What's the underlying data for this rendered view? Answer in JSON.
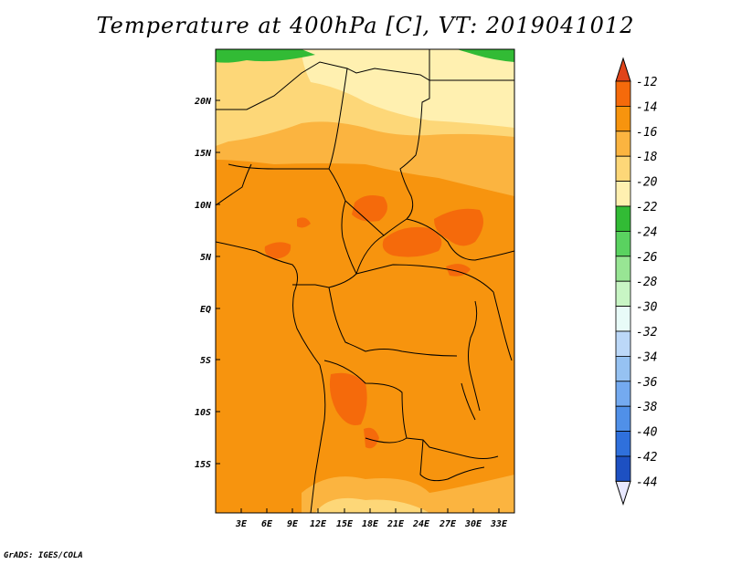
{
  "title": "Temperature at 400hPa [C], VT: 2019041012",
  "credit": "GrADS: IGES/COLA",
  "lat_labels": [
    "20N",
    "15N",
    "10N",
    "5N",
    "EQ",
    "5S",
    "10S",
    "15S"
  ],
  "lon_labels": [
    "3E",
    "6E",
    "9E",
    "12E",
    "15E",
    "18E",
    "21E",
    "24E",
    "27E",
    "30E",
    "33E"
  ],
  "colorbar": {
    "labels": [
      "-12",
      "-14",
      "-16",
      "-18",
      "-20",
      "-22",
      "-24",
      "-26",
      "-28",
      "-30",
      "-32",
      "-34",
      "-36",
      "-38",
      "-40",
      "-42",
      "-44"
    ],
    "colors": [
      "#f04a16",
      "#f56a0b",
      "#f7940e",
      "#fbb440",
      "#fdd778",
      "#fff0b0",
      "#32bb35",
      "#5ad260",
      "#98e594",
      "#c8f5c4",
      "#e8fbf8",
      "#bcd8f8",
      "#96c2f2",
      "#74aaf0",
      "#5090e8",
      "#2f70dc",
      "#1d50c2",
      "#0f2a8c"
    ],
    "upper_color": "#e0441a",
    "lower_color": "#e8e8ff"
  },
  "colors": {
    "base_field": "#f7940e",
    "warm_patch": "#f56a0b",
    "cool_band": "#fbb440",
    "cooler_band": "#fdd778",
    "coolest_band": "#fff0b0",
    "green_band": "#32bb35"
  }
}
